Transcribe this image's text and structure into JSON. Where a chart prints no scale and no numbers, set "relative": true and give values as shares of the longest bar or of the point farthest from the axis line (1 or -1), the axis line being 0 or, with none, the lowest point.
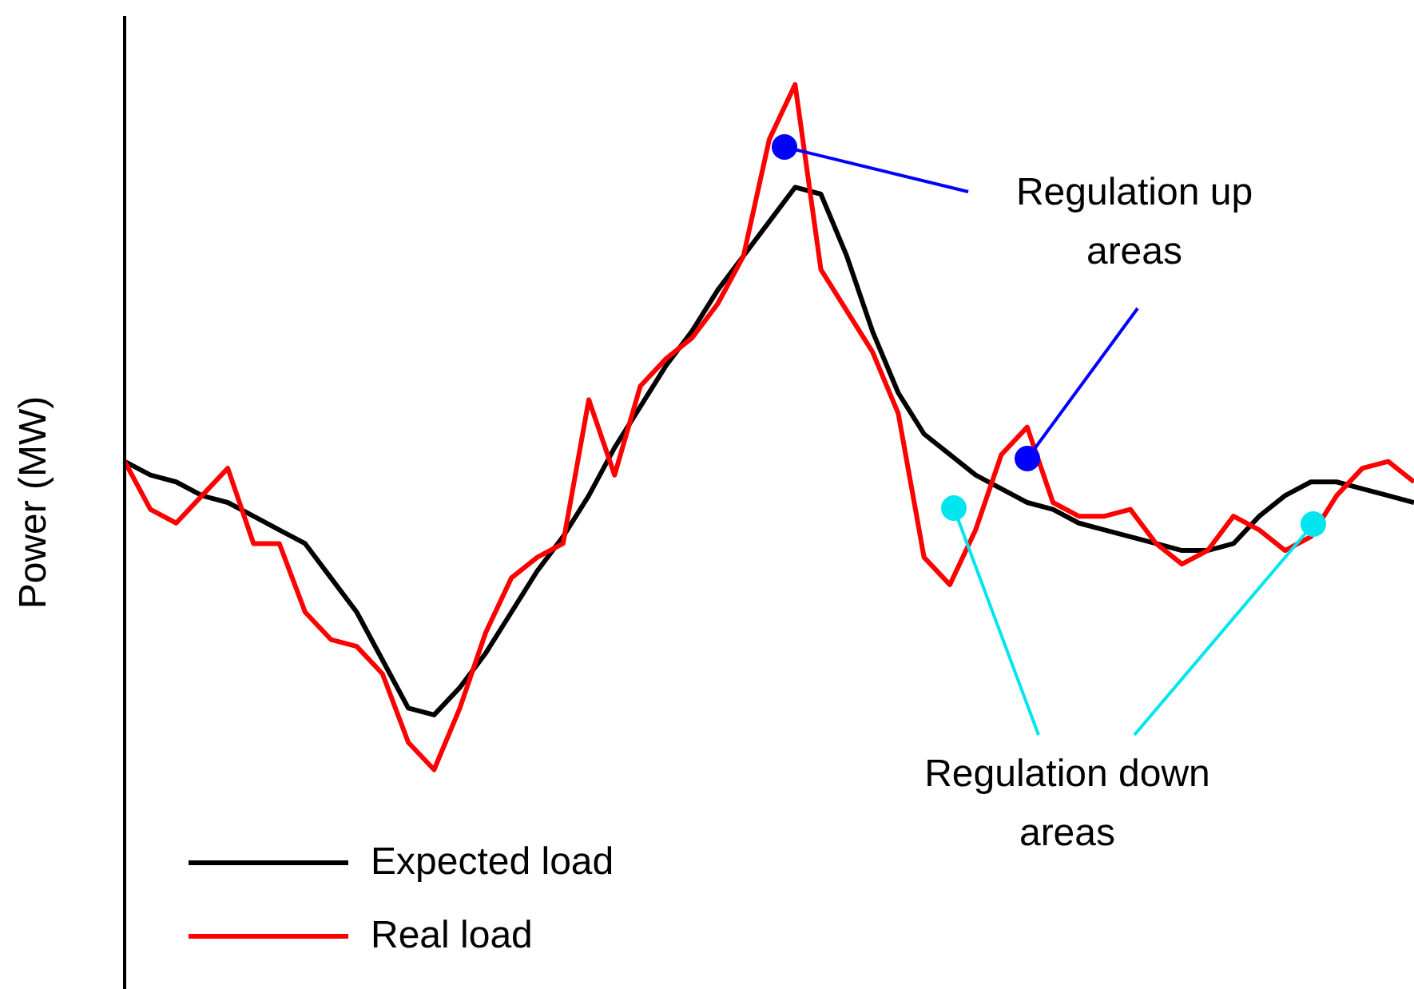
{
  "chart_data": {
    "type": "line",
    "relative": true,
    "ylabel": "Power (MW)",
    "legend": "bottom left",
    "categories": [
      null,
      null,
      null,
      null,
      null,
      null,
      null,
      null,
      null,
      null,
      null,
      null,
      null,
      null,
      null,
      null,
      null,
      null,
      null,
      null,
      null,
      null,
      null,
      null,
      null,
      null,
      null,
      null,
      null,
      null,
      null,
      null,
      null,
      null,
      null,
      null,
      null,
      null,
      null,
      null,
      null,
      null,
      null,
      null,
      null,
      null,
      null,
      null,
      null,
      null,
      null
    ],
    "series": [
      {
        "name": "Expected load",
        "color": "#000000",
        "values": [
          0.45,
          0.43,
          0.42,
          0.4,
          0.39,
          0.37,
          0.35,
          0.33,
          0.28,
          0.23,
          0.16,
          0.09,
          0.08,
          0.12,
          0.17,
          0.23,
          0.29,
          0.34,
          0.4,
          0.47,
          0.53,
          0.59,
          0.64,
          0.7,
          0.75,
          0.8,
          0.85,
          0.84,
          0.75,
          0.64,
          0.55,
          0.49,
          0.46,
          0.43,
          0.41,
          0.39,
          0.38,
          0.36,
          0.35,
          0.34,
          0.33,
          0.32,
          0.32,
          0.33,
          0.37,
          0.4,
          0.42,
          0.42,
          0.41,
          0.4,
          0.39
        ]
      },
      {
        "name": "Real load",
        "color": "#ff0000",
        "values": [
          0.45,
          0.38,
          0.36,
          0.4,
          0.44,
          0.33,
          0.33,
          0.23,
          0.19,
          0.18,
          0.14,
          0.04,
          0,
          0.09,
          0.2,
          0.28,
          0.31,
          0.33,
          0.54,
          0.43,
          0.56,
          0.6,
          0.63,
          0.68,
          0.75,
          0.92,
          1,
          0.73,
          0.67,
          0.61,
          0.52,
          0.31,
          0.27,
          0.35,
          0.46,
          0.5,
          0.39,
          0.37,
          0.37,
          0.38,
          0.33,
          0.3,
          0.32,
          0.37,
          0.35,
          0.32,
          0.34,
          0.4,
          0.44,
          0.45,
          0.42
        ]
      }
    ],
    "annotations": [
      "Regulation up areas",
      "Regulation down areas"
    ]
  }
}
